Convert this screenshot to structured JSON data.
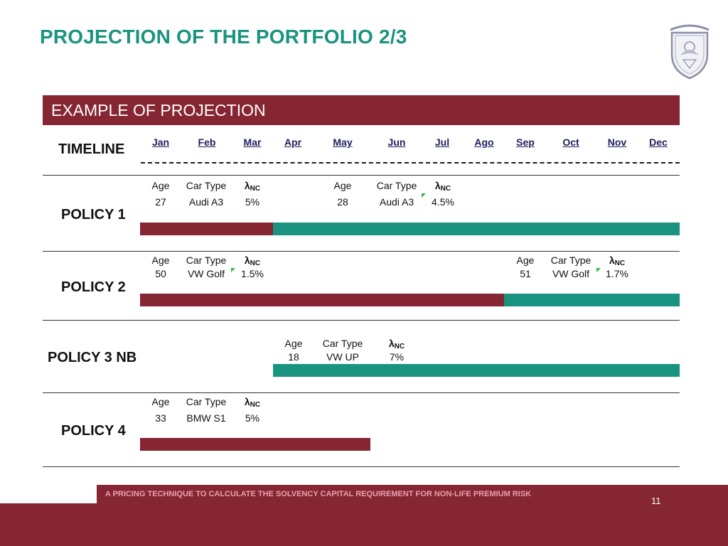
{
  "title": "PROJECTION OF THE PORTFOLIO 2/3",
  "section_title": "EXAMPLE OF PROJECTION",
  "timeline_label": "TIMELINE",
  "months": [
    "Jan",
    "Feb",
    "Mar",
    "Apr",
    "May",
    "Jun",
    "Jul",
    "Ago",
    "Sep",
    "Oct",
    "Nov",
    "Dec"
  ],
  "headers": {
    "age": "Age",
    "car_type": "Car Type",
    "lambda": "λ",
    "lambda_sub": "NC"
  },
  "policies": [
    {
      "label": "POLICY 1",
      "entries": [
        {
          "age": "27",
          "car": "Audi A3",
          "rate": "5%"
        },
        {
          "age": "28",
          "car": "Audi A3",
          "rate": "4.5%"
        }
      ]
    },
    {
      "label": "POLICY 2",
      "entries": [
        {
          "age": "50",
          "car": "VW Golf",
          "rate": "1.5%"
        },
        {
          "age": "51",
          "car": "VW Golf",
          "rate": "1.7%"
        }
      ]
    },
    {
      "label": "POLICY 3 NB",
      "entries": [
        {
          "age": "18",
          "car": "VW UP",
          "rate": "7%"
        }
      ]
    },
    {
      "label": "POLICY 4",
      "entries": [
        {
          "age": "33",
          "car": "BMW S1",
          "rate": "5%"
        }
      ]
    }
  ],
  "colors": {
    "brand_red": "#862633",
    "teal": "#1a9480",
    "title_teal": "#1a9480"
  },
  "logo_icon": "university-seal-icon",
  "footer_text": "A PRICING TECHNIQUE TO CALCULATE THE SOLVENCY CAPITAL REQUIREMENT FOR NON-LIFE PREMIUM RISK",
  "page_number": "11"
}
